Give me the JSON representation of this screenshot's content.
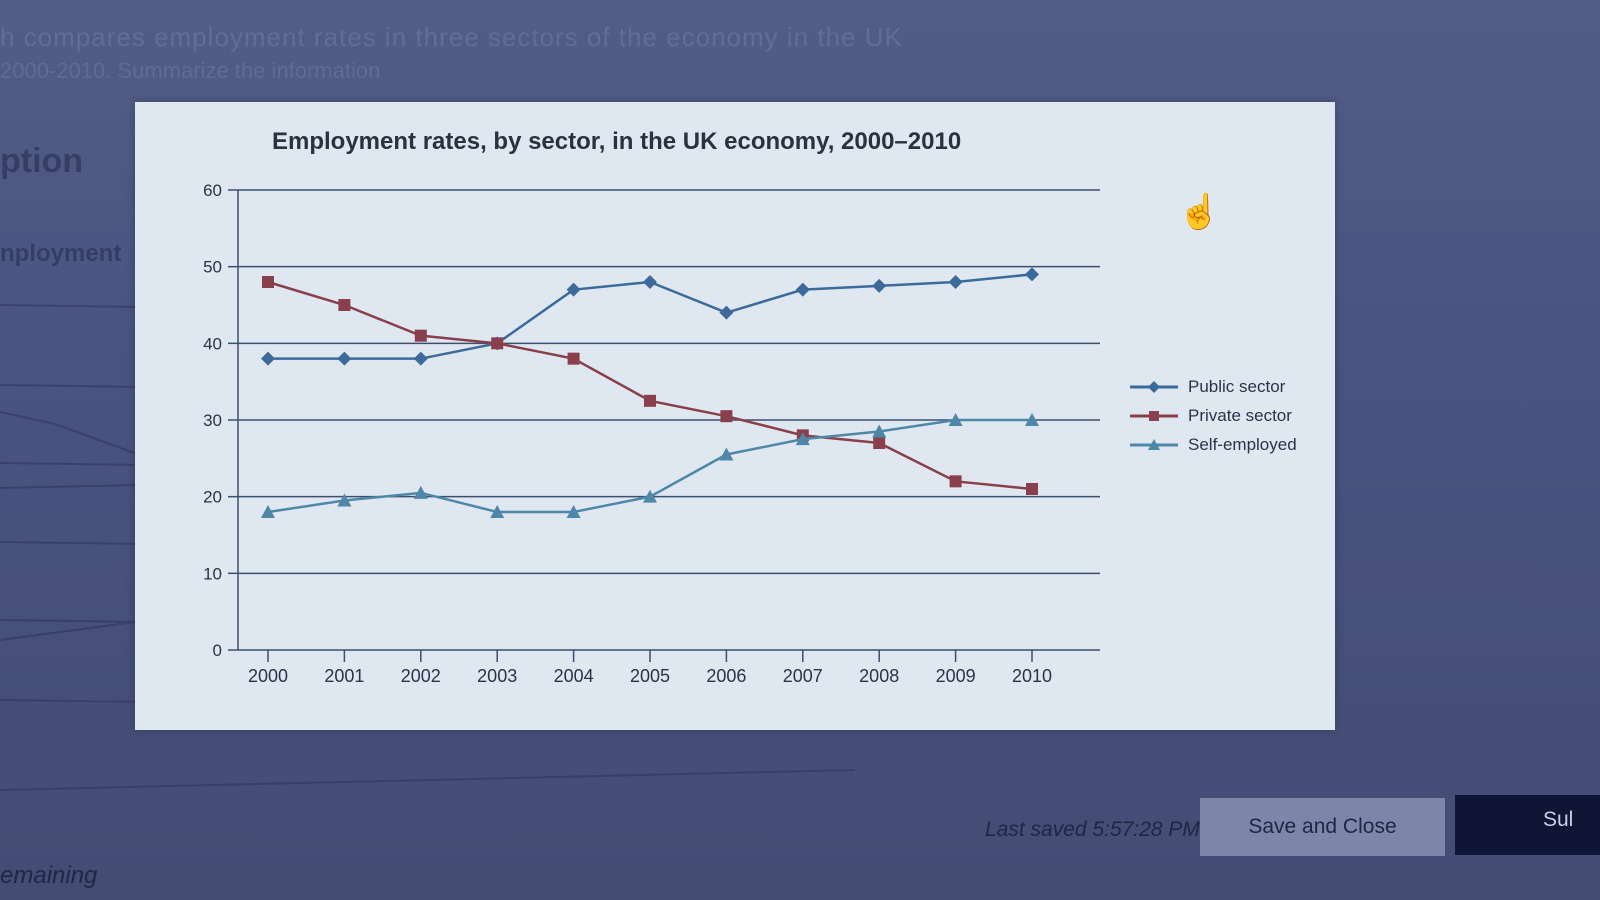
{
  "background": {
    "task_text_line1": "h compares employment rates in three sectors of the economy in the UK",
    "task_text_line2": "2000-2010. Summarize the information",
    "section_heading": "ption",
    "side_label": "nployment",
    "remaining_label": "emaining"
  },
  "footer": {
    "last_saved": "Last saved 5:57:28 PM",
    "save_and_close": "Save and Close",
    "submit": "Sul"
  },
  "chart_data": {
    "type": "line",
    "title": "Employment rates, by sector, in the UK economy, 2000–2010",
    "xlabel": "",
    "ylabel": "",
    "ylim": [
      0,
      60
    ],
    "yticks": [
      0,
      10,
      20,
      30,
      40,
      50,
      60
    ],
    "categories": [
      "2000",
      "2001",
      "2002",
      "2003",
      "2004",
      "2005",
      "2006",
      "2007",
      "2008",
      "2009",
      "2010"
    ],
    "legend_position": "right",
    "grid": true,
    "series": [
      {
        "name": "Public sector",
        "color": "#3c6a9a",
        "marker": "diamond",
        "values": [
          38,
          38,
          38,
          40,
          47,
          48,
          44,
          47,
          47.5,
          48,
          49
        ]
      },
      {
        "name": "Private sector",
        "color": "#8a3f4c",
        "marker": "square",
        "values": [
          48,
          45,
          41,
          40,
          38,
          32.5,
          30.5,
          28,
          27,
          22,
          21
        ]
      },
      {
        "name": "Self-employed",
        "color": "#4f87a8",
        "marker": "triangle",
        "values": [
          18,
          19.5,
          20.5,
          18,
          18,
          20,
          25.5,
          27.5,
          28.5,
          30,
          30
        ]
      }
    ]
  }
}
